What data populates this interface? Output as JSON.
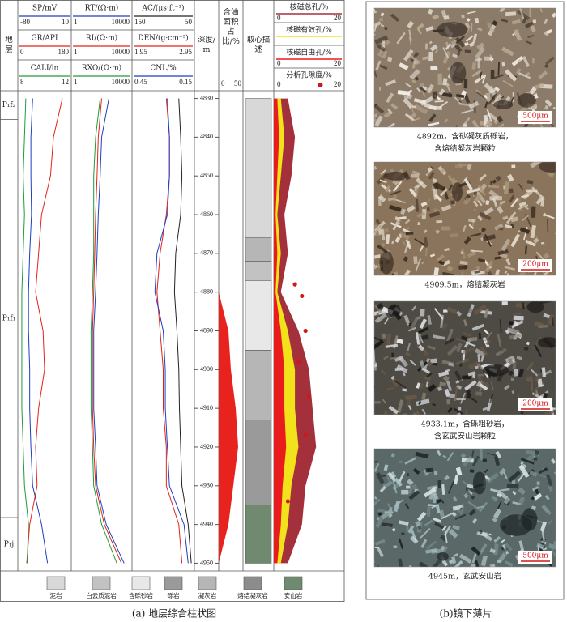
{
  "panel_a": {
    "caption": "(a) 地层综合柱状图",
    "strata_title": "地层",
    "depth_title": "深度/m",
    "core_title": "取心描述",
    "ylim": [
      4828,
      4952
    ],
    "yticks": [
      4830,
      4840,
      4850,
      4860,
      4870,
      4880,
      4890,
      4900,
      4910,
      4920,
      4930,
      4940,
      4950
    ],
    "strata": [
      {
        "label": "P₁f₂",
        "top": 4828,
        "bottom": 4835.4
      },
      {
        "label": "P₁f₁",
        "top": 4835.4,
        "bottom": 4938.2
      },
      {
        "label": "P₁j",
        "top": 4938.2,
        "bottom": 4952
      }
    ],
    "depths": [
      4830,
      4840,
      4850,
      4860,
      4870,
      4880,
      4890,
      4900,
      4910,
      4920,
      4930,
      4940,
      4950
    ],
    "tracks": [
      {
        "curves": [
          {
            "name": "SP/mV",
            "color": "#1f3fbf",
            "xlim": [
              -80,
              10
            ],
            "values": [
              -55,
              -58,
              -58,
              -57,
              -60,
              -62,
              -62,
              -60,
              -60,
              -58,
              -55,
              -40,
              -30
            ]
          },
          {
            "name": "GR/API",
            "color": "#e2231a",
            "xlim": [
              0,
              180
            ],
            "values": [
              150,
              120,
              110,
              80,
              70,
              60,
              85,
              90,
              70,
              60,
              65,
              40,
              30
            ]
          },
          {
            "name": "CALI/in",
            "color": "#1f9a3a",
            "xlim": [
              8,
              12
            ],
            "values": [
              8.6,
              8.5,
              8.4,
              8.5,
              8.4,
              8.3,
              8.3,
              8.3,
              8.3,
              8.4,
              8.5,
              8.8,
              8.7
            ]
          }
        ]
      },
      {
        "log": true,
        "curves": [
          {
            "name": "RT/(Ω·m)",
            "color": "#1f3fbf",
            "xlim": [
              1,
              10000
            ],
            "values": [
              300,
              100,
              80,
              60,
              50,
              40,
              30,
              30,
              30,
              40,
              50,
              200,
              3000
            ]
          },
          {
            "name": "RI/(Ω·m)",
            "color": "#e2231a",
            "xlim": [
              1,
              10000
            ],
            "values": [
              100,
              60,
              50,
              40,
              35,
              30,
              25,
              25,
              25,
              30,
              40,
              150,
              2000
            ]
          },
          {
            "name": "RXO/(Ω·m)",
            "color": "#1f9a3a",
            "xlim": [
              1,
              10000
            ],
            "values": [
              80,
              40,
              30,
              30,
              30,
              25,
              20,
              20,
              20,
              25,
              30,
              100,
              1000
            ]
          }
        ]
      },
      {
        "curves": [
          {
            "name": "AC/(μs·ft⁻¹)",
            "color": "#222222",
            "xlim": [
              150,
              50
            ],
            "values": [
              75,
              72,
              70,
              72,
              80,
              82,
              78,
              75,
              74,
              72,
              70,
              60,
              55
            ]
          },
          {
            "name": "DEN/(g·cm⁻³)",
            "color": "#e2231a",
            "xlim": [
              1.95,
              2.95
            ],
            "values": [
              2.5,
              2.55,
              2.55,
              2.5,
              2.4,
              2.35,
              2.4,
              2.45,
              2.45,
              2.5,
              2.5,
              2.7,
              2.75
            ]
          },
          {
            "name": "CNL/%",
            "color": "#1f3fbf",
            "xlim": [
              0.45,
              0.15
            ],
            "values": [
              0.28,
              0.27,
              0.27,
              0.28,
              0.33,
              0.34,
              0.3,
              0.29,
              0.29,
              0.28,
              0.27,
              0.2,
              0.18
            ]
          }
        ]
      }
    ],
    "oil": {
      "title": "含油面积占比/%",
      "xlim": [
        0,
        50
      ],
      "color": "#e8231e",
      "values": [
        0,
        0,
        0,
        0,
        0,
        0,
        20,
        25,
        35,
        40,
        30,
        20,
        0
      ]
    },
    "core": [
      {
        "top": 4830,
        "bottom": 4866,
        "lithology": "泥岩"
      },
      {
        "top": 4866,
        "bottom": 4872,
        "lithology": "凝灰岩"
      },
      {
        "top": 4872,
        "bottom": 4877,
        "lithology": "白云质泥岩"
      },
      {
        "top": 4877,
        "bottom": 4895,
        "lithology": "含砾砂岩"
      },
      {
        "top": 4895,
        "bottom": 4913,
        "lithology": "凝灰岩"
      },
      {
        "top": 4913,
        "bottom": 4935,
        "lithology": "砾岩"
      },
      {
        "top": 4935,
        "bottom": 4950,
        "lithology": "安山岩"
      }
    ],
    "nmr": {
      "curves": [
        {
          "name": "核磁总孔/%",
          "color": "#a3303a",
          "xlim": [
            0,
            20
          ],
          "values": [
            4,
            6,
            5,
            3,
            4,
            2,
            7,
            10,
            11,
            12,
            9,
            8,
            4
          ]
        },
        {
          "name": "核磁有效孔/%",
          "color": "#f2e21c",
          "values": [
            2,
            3,
            2,
            1,
            2,
            1,
            4,
            6,
            6,
            7,
            5,
            4,
            2
          ]
        },
        {
          "name": "核磁自由孔/%",
          "color": "#e81c1c",
          "xlim": [
            0,
            20
          ],
          "values": [
            1,
            1.5,
            1,
            0.5,
            1,
            0.5,
            2,
            3,
            3,
            3.5,
            2.5,
            2,
            1
          ]
        }
      ],
      "analysis": {
        "name": "分析孔隙度/%",
        "color": "#d01818",
        "xlim": [
          0,
          20
        ],
        "depths": [
          4878,
          4881,
          4890,
          4898,
          4907,
          4917,
          4934
        ],
        "values": [
          6,
          8,
          9,
          7,
          10,
          9,
          4
        ]
      }
    },
    "legend": [
      {
        "label": "泥岩",
        "fill": "#d8d8d8"
      },
      {
        "label": "白云质泥岩",
        "fill": "#c2c2c2"
      },
      {
        "label": "含砾砂岩",
        "fill": "#e8e8e8"
      },
      {
        "label": "砾岩",
        "fill": "#9a9a9a"
      },
      {
        "label": "凝灰岩",
        "fill": "#b6b6b6"
      },
      {
        "label": "熔结凝灰岩",
        "fill": "#8c8c8c"
      },
      {
        "label": "安山岩",
        "fill": "#6f8a6f"
      }
    ]
  },
  "panel_b": {
    "caption": "(b)镜下薄片",
    "photos": [
      {
        "caption": [
          "4892m，含砂凝灰质砾岩，",
          "含熔结凝灰岩颗粒"
        ],
        "scale_bar": "500μm"
      },
      {
        "caption": [
          "4909.5m，熔结凝灰岩"
        ],
        "scale_bar": "200μm"
      },
      {
        "caption": [
          "4933.1m，含砾粗砂岩，",
          "含玄武安山岩颗粒"
        ],
        "scale_bar": "200μm"
      },
      {
        "caption": [
          "4945m，玄武安山岩"
        ],
        "scale_bar": "500μm"
      }
    ]
  }
}
